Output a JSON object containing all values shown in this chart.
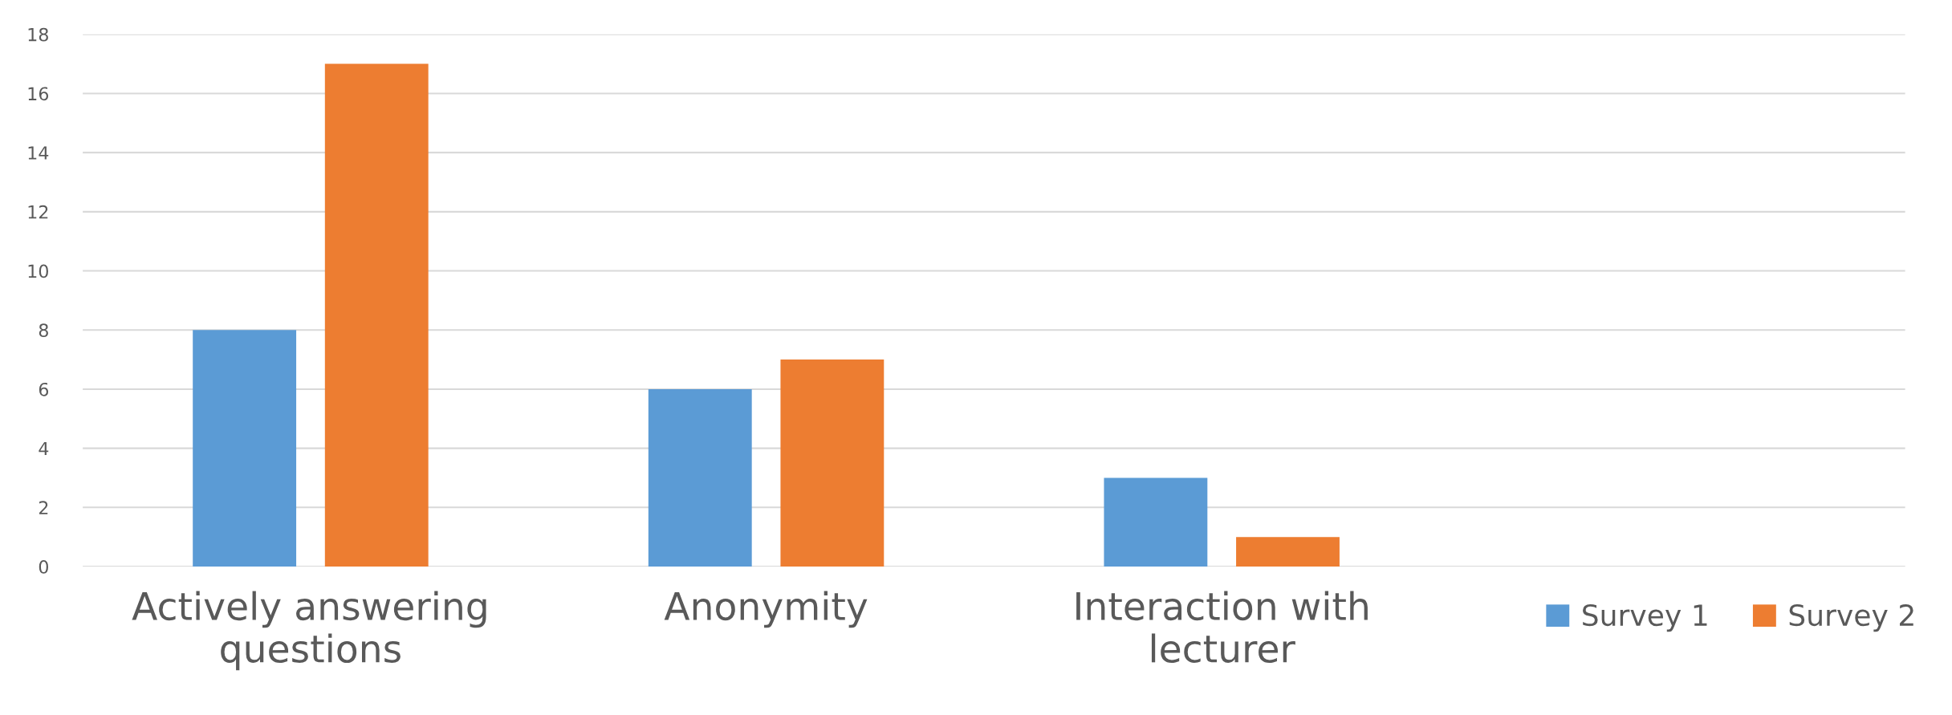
{
  "chart_data": {
    "type": "bar",
    "categories": [
      "Actively answering questions",
      "Anonymity",
      "Interaction with lecturer",
      null
    ],
    "series": [
      {
        "name": "Survey 1",
        "color": "#5b9bd5",
        "values": [
          8,
          6,
          3,
          null
        ]
      },
      {
        "name": "Survey 2",
        "color": "#ed7d31",
        "values": [
          17,
          7,
          1,
          null
        ]
      }
    ],
    "ylim": [
      0,
      18
    ],
    "yticks": [
      0,
      2,
      4,
      6,
      8,
      10,
      12,
      14,
      16,
      18
    ],
    "grid": "y",
    "legend": "bottom right"
  }
}
